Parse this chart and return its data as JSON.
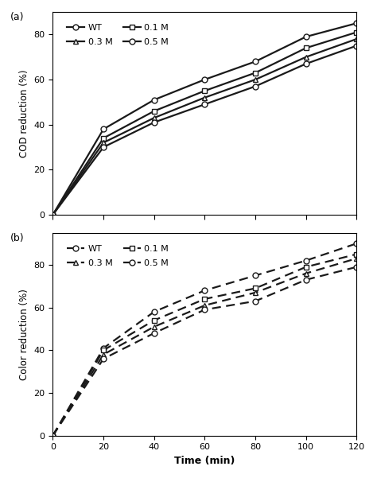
{
  "time": [
    0,
    20,
    40,
    60,
    80,
    100,
    120
  ],
  "panel_a": {
    "title_label": "(a)",
    "ylabel": "COD reduction (%)",
    "ylim": [
      0,
      90
    ],
    "yticks": [
      0,
      20,
      40,
      60,
      80
    ],
    "xlim": [
      0,
      120
    ],
    "series": [
      {
        "label": "WT",
        "values": [
          0,
          38,
          51,
          60,
          68,
          79,
          85
        ],
        "marker": "o",
        "mfc": "white"
      },
      {
        "label": "0.1 M",
        "values": [
          0,
          34,
          46,
          55,
          63,
          74,
          81
        ],
        "marker": "s",
        "mfc": "white"
      },
      {
        "label": "0.3 M",
        "values": [
          0,
          32,
          43,
          52,
          60,
          70,
          78
        ],
        "marker": "^",
        "mfc": "white"
      },
      {
        "label": "0.5 M",
        "values": [
          0,
          30,
          41,
          49,
          57,
          67,
          75
        ],
        "marker": "o",
        "mfc": "white"
      }
    ],
    "legend_order": [
      0,
      2,
      1,
      3
    ]
  },
  "panel_b": {
    "title_label": "(b)",
    "ylabel": "Color reduction (%)",
    "xlabel": "Time (min)",
    "ylim": [
      0,
      95
    ],
    "yticks": [
      0,
      20,
      40,
      60,
      80
    ],
    "xlim": [
      0,
      120
    ],
    "xticks": [
      0,
      20,
      40,
      60,
      80,
      100,
      120
    ],
    "series": [
      {
        "label": "WT",
        "values": [
          0,
          41,
          58,
          68,
          75,
          82,
          90
        ],
        "marker": "o",
        "mfc": "white"
      },
      {
        "label": "0.1 M",
        "values": [
          0,
          40,
          54,
          64,
          69,
          79,
          85
        ],
        "marker": "s",
        "mfc": "white"
      },
      {
        "label": "0.3 M",
        "values": [
          0,
          38,
          51,
          61,
          67,
          76,
          83
        ],
        "marker": "^",
        "mfc": "white"
      },
      {
        "label": "0.5 M",
        "values": [
          0,
          36,
          48,
          59,
          63,
          73,
          79
        ],
        "marker": "o",
        "mfc": "white"
      }
    ],
    "legend_order": [
      0,
      2,
      1,
      3
    ]
  },
  "bg_color": "#ffffff",
  "line_color": "#1a1a1a",
  "linewidth": 1.6,
  "markersize": 5.0,
  "markeredgewidth": 1.0,
  "dash_pattern": [
    5,
    3
  ]
}
